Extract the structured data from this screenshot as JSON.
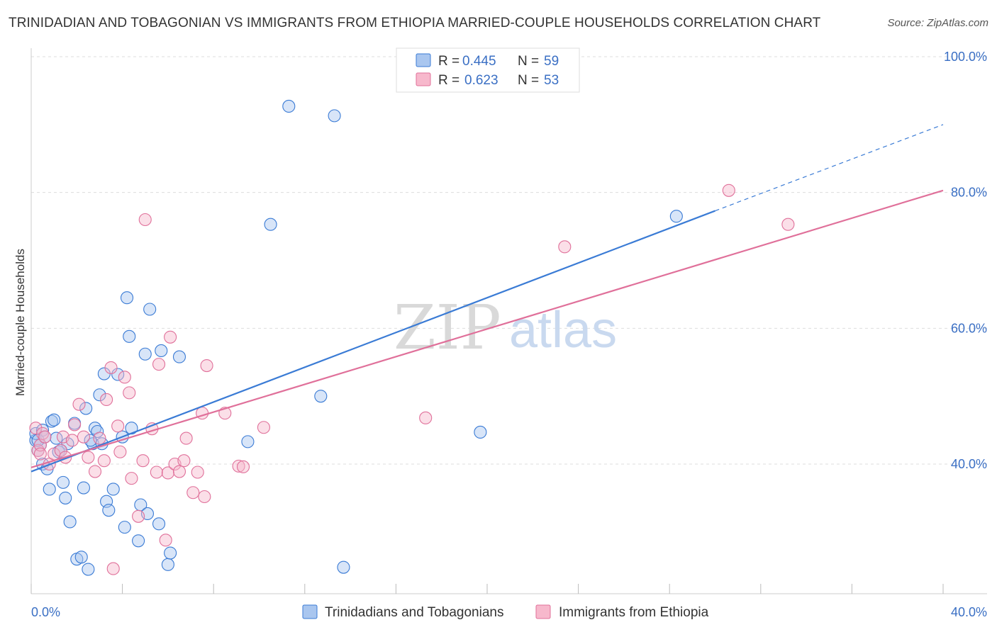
{
  "title": "TRINIDADIAN AND TOBAGONIAN VS IMMIGRANTS FROM ETHIOPIA MARRIED-COUPLE HOUSEHOLDS CORRELATION CHART",
  "source": "Source: ZipAtlas.com",
  "watermark": {
    "zip": "ZIP",
    "atlas": "atlas"
  },
  "legend": {
    "rows": [
      {
        "r_label": "R =",
        "r_value": "0.445",
        "n_label": "N =",
        "n_value": "59"
      },
      {
        "r_label": "R =",
        "r_value": "0.623",
        "n_label": "N =",
        "n_value": "53"
      }
    ]
  },
  "colors": {
    "blue": "#3a7bd5",
    "blue_fill": "#a9c6ef",
    "pink": "#e0709a",
    "pink_fill": "#f7b8cc",
    "axis_text": "#3a6fc4",
    "grid": "#dddddd"
  },
  "chart_data": {
    "type": "scatter",
    "title": "TRINIDADIAN AND TOBAGONIAN VS IMMIGRANTS FROM ETHIOPIA MARRIED-COUPLE HOUSEHOLDS CORRELATION CHART",
    "xlabel": "",
    "ylabel": "Married-couple Households",
    "xlim": [
      0,
      40
    ],
    "ylim": [
      20,
      103
    ],
    "x_tick_labels": [
      "0.0%",
      "40.0%"
    ],
    "y_ticks": [
      40,
      60,
      80,
      100
    ],
    "y_tick_labels": [
      "40.0%",
      "60.0%",
      "80.0%",
      "100.0%"
    ],
    "grid": true,
    "legend_position": "top-center",
    "series": [
      {
        "name": "Trinidadians and Tobagonians",
        "color": "#3a7bd5",
        "points": [
          [
            0.2,
            43.5
          ],
          [
            0.2,
            44.5
          ],
          [
            0.3,
            42.0
          ],
          [
            0.4,
            42.8
          ],
          [
            0.5,
            45.0
          ],
          [
            0.5,
            40.0
          ],
          [
            0.7,
            39.3
          ],
          [
            0.8,
            36.3
          ],
          [
            0.9,
            46.3
          ],
          [
            1.0,
            46.5
          ],
          [
            1.1,
            43.8
          ],
          [
            1.2,
            41.8
          ],
          [
            1.4,
            37.3
          ],
          [
            1.5,
            35.0
          ],
          [
            1.6,
            43.0
          ],
          [
            1.7,
            31.5
          ],
          [
            1.9,
            46.0
          ],
          [
            2.0,
            26.0
          ],
          [
            2.2,
            26.3
          ],
          [
            2.3,
            36.5
          ],
          [
            2.4,
            48.2
          ],
          [
            2.5,
            24.5
          ],
          [
            2.7,
            43.0
          ],
          [
            2.8,
            45.3
          ],
          [
            2.9,
            44.8
          ],
          [
            3.0,
            50.2
          ],
          [
            3.1,
            43.0
          ],
          [
            3.2,
            53.3
          ],
          [
            3.3,
            34.5
          ],
          [
            3.4,
            33.2
          ],
          [
            3.6,
            36.3
          ],
          [
            3.8,
            53.2
          ],
          [
            4.0,
            44.0
          ],
          [
            4.1,
            30.7
          ],
          [
            4.2,
            64.5
          ],
          [
            4.3,
            58.8
          ],
          [
            4.4,
            45.3
          ],
          [
            4.7,
            28.7
          ],
          [
            4.8,
            34.0
          ],
          [
            5.0,
            56.2
          ],
          [
            5.1,
            32.7
          ],
          [
            5.2,
            62.8
          ],
          [
            5.6,
            31.2
          ],
          [
            5.7,
            56.7
          ],
          [
            6.0,
            25.2
          ],
          [
            6.1,
            26.9
          ],
          [
            6.5,
            55.8
          ],
          [
            9.5,
            43.3
          ],
          [
            10.5,
            75.3
          ],
          [
            11.3,
            92.7
          ],
          [
            12.7,
            50.0
          ],
          [
            13.3,
            91.3
          ],
          [
            13.7,
            24.8
          ],
          [
            19.7,
            44.7
          ],
          [
            28.3,
            76.5
          ],
          [
            0.3,
            43.5
          ],
          [
            0.6,
            44.0
          ],
          [
            1.3,
            42.0
          ],
          [
            2.6,
            43.5
          ]
        ]
      },
      {
        "name": "Immigrants from Ethiopia",
        "color": "#e0709a",
        "points": [
          [
            0.2,
            45.3
          ],
          [
            0.3,
            42.0
          ],
          [
            0.4,
            42.8
          ],
          [
            0.5,
            44.5
          ],
          [
            0.6,
            44.0
          ],
          [
            0.8,
            40.0
          ],
          [
            1.0,
            41.5
          ],
          [
            1.3,
            42.0
          ],
          [
            1.4,
            44.0
          ],
          [
            1.5,
            41.0
          ],
          [
            1.8,
            43.5
          ],
          [
            1.9,
            45.8
          ],
          [
            2.1,
            48.8
          ],
          [
            2.3,
            44.0
          ],
          [
            2.5,
            41.0
          ],
          [
            2.8,
            38.9
          ],
          [
            3.0,
            43.8
          ],
          [
            3.2,
            40.5
          ],
          [
            3.3,
            49.5
          ],
          [
            3.5,
            54.2
          ],
          [
            3.6,
            24.6
          ],
          [
            3.8,
            45.6
          ],
          [
            3.9,
            41.8
          ],
          [
            4.1,
            52.8
          ],
          [
            4.3,
            50.5
          ],
          [
            4.4,
            37.9
          ],
          [
            4.7,
            32.3
          ],
          [
            4.9,
            40.5
          ],
          [
            5.0,
            76.0
          ],
          [
            5.3,
            45.2
          ],
          [
            5.5,
            38.8
          ],
          [
            5.6,
            54.7
          ],
          [
            5.9,
            28.8
          ],
          [
            6.0,
            38.7
          ],
          [
            6.1,
            58.7
          ],
          [
            6.3,
            40.0
          ],
          [
            6.5,
            38.9
          ],
          [
            6.7,
            40.5
          ],
          [
            6.8,
            43.8
          ],
          [
            7.1,
            35.8
          ],
          [
            7.3,
            38.8
          ],
          [
            7.5,
            47.5
          ],
          [
            7.6,
            35.2
          ],
          [
            7.7,
            54.5
          ],
          [
            8.5,
            47.5
          ],
          [
            9.1,
            39.7
          ],
          [
            9.3,
            39.6
          ],
          [
            10.2,
            45.4
          ],
          [
            17.3,
            46.8
          ],
          [
            23.4,
            72.0
          ],
          [
            30.6,
            80.3
          ],
          [
            33.2,
            75.3
          ],
          [
            0.4,
            41.5
          ]
        ]
      }
    ],
    "trendlines": [
      {
        "series": "Trinidadians and Tobagonians",
        "x": [
          0,
          30
        ],
        "y": [
          38.9,
          77.3
        ],
        "dashed_extension_to": [
          40,
          90.0
        ]
      },
      {
        "series": "Immigrants from Ethiopia",
        "x": [
          0,
          40
        ],
        "y": [
          39.5,
          80.3
        ]
      }
    ]
  }
}
